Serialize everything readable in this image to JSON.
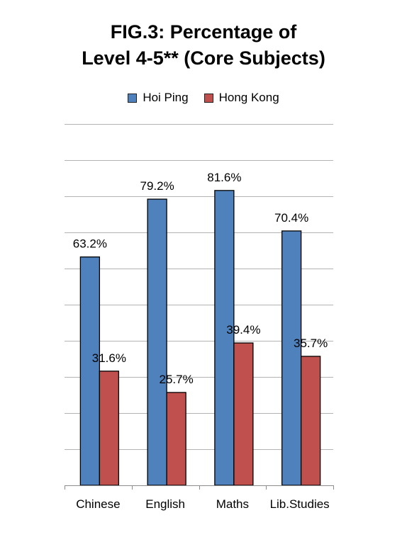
{
  "chart_data": {
    "type": "bar",
    "title_lines": [
      "FIG.3: Percentage of",
      "Level 4-5** (Core Subjects)"
    ],
    "categories": [
      "Chinese",
      "English",
      "Maths",
      "Lib.Studies"
    ],
    "series": [
      {
        "name": "Hoi Ping",
        "values": [
          63.2,
          79.2,
          81.6,
          70.4
        ],
        "labels": [
          "63.2%",
          "79.2%",
          "81.6%",
          "70.4%"
        ],
        "color": "#4F81BD"
      },
      {
        "name": "Hong Kong",
        "values": [
          31.6,
          25.7,
          39.4,
          35.7
        ],
        "labels": [
          "31.6%",
          "25.7%",
          "39.4%",
          "35.7%"
        ],
        "color": "#C0504D"
      }
    ],
    "ylim": [
      0,
      100
    ],
    "grid": true,
    "legend_position": "top"
  }
}
